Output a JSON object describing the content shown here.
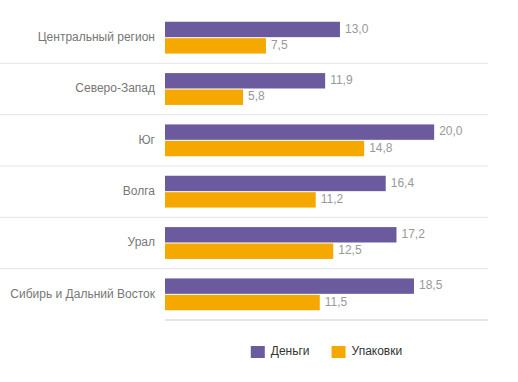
{
  "chart_data": {
    "type": "bar",
    "orientation": "horizontal",
    "categories": [
      "Центральный регион",
      "Северо-Запад",
      "Юг",
      "Волга",
      "Урал",
      "Сибирь и Дальний Восток"
    ],
    "series": [
      {
        "name": "Деньги",
        "color": "#6b5b9e",
        "values": [
          13.0,
          11.9,
          20.0,
          16.4,
          17.2,
          18.5
        ],
        "value_labels": [
          "13,0",
          "11,9",
          "20,0",
          "16,4",
          "17,2",
          "18,5"
        ]
      },
      {
        "name": "Упаковки",
        "color": "#f5a800",
        "values": [
          7.5,
          5.8,
          14.8,
          11.2,
          12.5,
          11.5
        ],
        "value_labels": [
          "7,5",
          "5,8",
          "14,8",
          "11,2",
          "12,5",
          "11,5"
        ]
      }
    ],
    "xlim": [
      0,
      24
    ],
    "data_labels": true,
    "tick_labels": "y",
    "grid": false,
    "legend": "bottom"
  }
}
